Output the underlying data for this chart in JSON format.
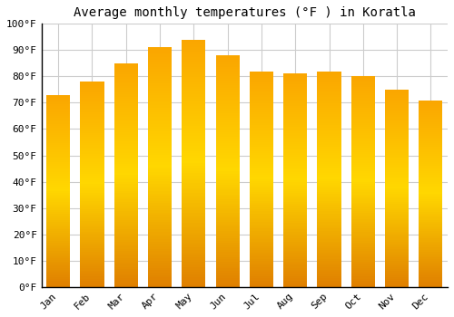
{
  "title": "Average monthly temperatures (°F ) in Koratla",
  "months": [
    "Jan",
    "Feb",
    "Mar",
    "Apr",
    "May",
    "Jun",
    "Jul",
    "Aug",
    "Sep",
    "Oct",
    "Nov",
    "Dec"
  ],
  "values": [
    73,
    78,
    85,
    91,
    94,
    88,
    82,
    81,
    82,
    80,
    75,
    71
  ],
  "ylim": [
    0,
    100
  ],
  "yticks": [
    0,
    10,
    20,
    30,
    40,
    50,
    60,
    70,
    80,
    90,
    100
  ],
  "ytick_labels": [
    "0°F",
    "10°F",
    "20°F",
    "30°F",
    "40°F",
    "50°F",
    "60°F",
    "70°F",
    "80°F",
    "90°F",
    "100°F"
  ],
  "background_color": "#ffffff",
  "grid_color": "#cccccc",
  "title_fontsize": 10,
  "tick_fontsize": 8,
  "bar_color_bottom": "#E07800",
  "bar_color_mid": "#FFA500",
  "bar_color_top": "#FFD700",
  "bar_width": 0.7
}
